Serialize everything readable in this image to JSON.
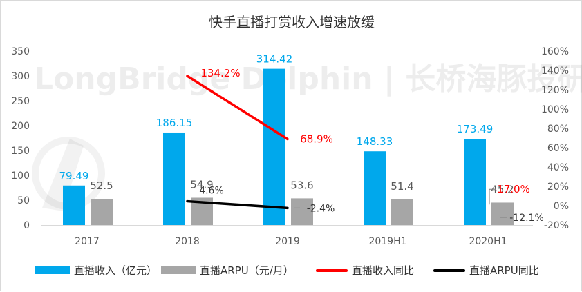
{
  "chart_data": {
    "type": "bar",
    "title": "快手直播打赏收入增速放缓",
    "watermark": "LongBridge Dolphin | 长桥海豚投研",
    "categories": [
      "2017",
      "2018",
      "2019",
      "2019H1",
      "2020H1"
    ],
    "left_axis": {
      "ylim": [
        0,
        350
      ],
      "ticks": [
        "0",
        "50",
        "100",
        "150",
        "200",
        "250",
        "300",
        "350"
      ]
    },
    "right_axis": {
      "ylim": [
        -20,
        160
      ],
      "ticks": [
        "-20%",
        "0%",
        "20%",
        "40%",
        "60%",
        "80%",
        "100%",
        "120%",
        "140%",
        "160%"
      ]
    },
    "series": [
      {
        "name": "直播收入（亿元）",
        "kind": "bar",
        "axis": "left",
        "color": "#00a8ec",
        "values": [
          79.49,
          186.15,
          314.42,
          148.33,
          173.49
        ],
        "labels": [
          "79.49",
          "186.15",
          "314.42",
          "148.33",
          "173.49"
        ]
      },
      {
        "name": "直播ARPU（元/月）",
        "kind": "bar",
        "axis": "left",
        "color": "#a6a6a6",
        "values": [
          52.5,
          54.9,
          53.6,
          51.4,
          45.2
        ],
        "labels": [
          "52.5",
          "54.9",
          "53.6",
          "51.4",
          "45.2"
        ]
      },
      {
        "name": "直播收入同比",
        "kind": "line",
        "axis": "right",
        "color": "#ff0000",
        "points": [
          {
            "x": "2018",
            "y": 134.2
          },
          {
            "x": "2019",
            "y": 68.9
          },
          {
            "x": "2020H1",
            "y": 17.0
          }
        ],
        "labels": [
          "134.2%",
          "68.9%",
          "17.0%"
        ]
      },
      {
        "name": "直播ARPU同比",
        "kind": "line",
        "axis": "right",
        "color": "#000000",
        "points": [
          {
            "x": "2018",
            "y": 4.6
          },
          {
            "x": "2019",
            "y": -2.4
          },
          {
            "x": "2020H1",
            "y": -12.1
          }
        ],
        "labels": [
          "4.6%",
          "-2.4%",
          "-12.1%"
        ]
      }
    ],
    "legend_position": "bottom",
    "grid": false
  }
}
